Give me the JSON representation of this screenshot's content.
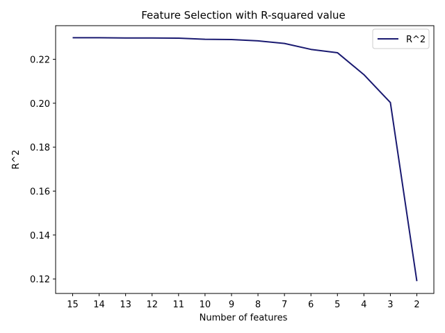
{
  "chart_data": {
    "type": "line",
    "title": "Feature Selection with R-squared value",
    "xlabel": "Number of features",
    "ylabel": "R^2",
    "categories": [
      "15",
      "14",
      "13",
      "12",
      "11",
      "10",
      "9",
      "8",
      "7",
      "6",
      "5",
      "4",
      "3",
      "2"
    ],
    "series": [
      {
        "name": "R^2",
        "color": "#191970",
        "values": [
          0.2298,
          0.2298,
          0.2297,
          0.2297,
          0.2296,
          0.2291,
          0.229,
          0.2284,
          0.2272,
          0.2245,
          0.223,
          0.213,
          0.2003,
          0.119
        ]
      }
    ],
    "ylim": [
      0.1134,
      0.2353
    ],
    "yticks": [
      0.12,
      0.14,
      0.16,
      0.18,
      0.2,
      0.22
    ],
    "ytick_labels": [
      "0.12",
      "0.14",
      "0.16",
      "0.18",
      "0.20",
      "0.22"
    ],
    "grid": false,
    "legend_position": "top-right"
  }
}
